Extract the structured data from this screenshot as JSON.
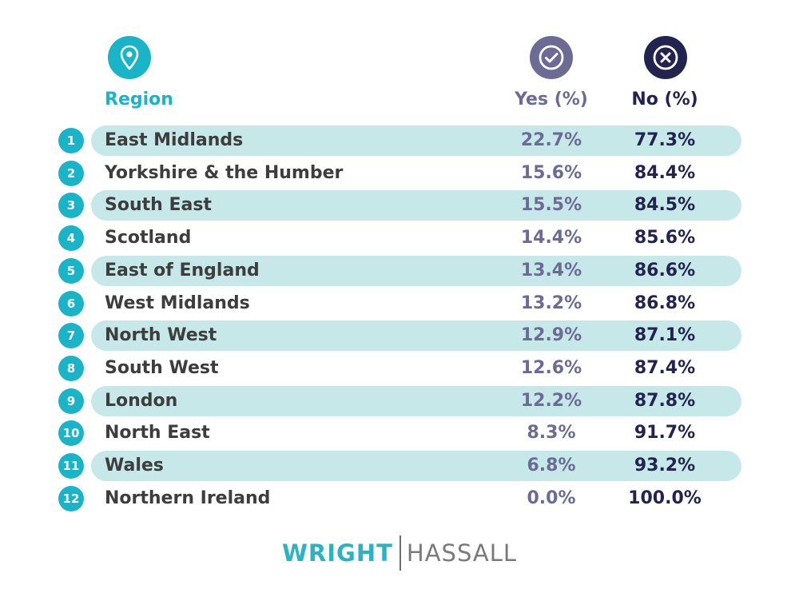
{
  "header": {
    "region_label": "Region",
    "yes_label": "Yes (%)",
    "no_label": "No (%)",
    "icons": [
      "location-pin-icon",
      "check-circle-icon",
      "cross-circle-icon"
    ]
  },
  "colors": {
    "teal": "#1ab4c8",
    "band": "#c7e8e9",
    "yes": "#6b6b96",
    "no": "#22244f",
    "region_text": "#3d3d3d"
  },
  "chart_data": {
    "type": "table",
    "columns": [
      "Region",
      "Yes (%)",
      "No (%)"
    ],
    "rows": [
      {
        "rank": "1",
        "region": "East Midlands",
        "yes": "22.7%",
        "no": "77.3%"
      },
      {
        "rank": "2",
        "region": "Yorkshire & the Humber",
        "yes": "15.6%",
        "no": "84.4%"
      },
      {
        "rank": "3",
        "region": "South East",
        "yes": "15.5%",
        "no": "84.5%"
      },
      {
        "rank": "4",
        "region": "Scotland",
        "yes": "14.4%",
        "no": "85.6%"
      },
      {
        "rank": "5",
        "region": "East of England",
        "yes": "13.4%",
        "no": "86.6%"
      },
      {
        "rank": "6",
        "region": "West Midlands",
        "yes": "13.2%",
        "no": "86.8%"
      },
      {
        "rank": "7",
        "region": "North West",
        "yes": "12.9%",
        "no": "87.1%"
      },
      {
        "rank": "8",
        "region": "South West",
        "yes": "12.6%",
        "no": "87.4%"
      },
      {
        "rank": "9",
        "region": "London",
        "yes": "12.2%",
        "no": "87.8%"
      },
      {
        "rank": "10",
        "region": "North East",
        "yes": "8.3%",
        "no": "91.7%"
      },
      {
        "rank": "11",
        "region": "Wales",
        "yes": "6.8%",
        "no": "93.2%"
      },
      {
        "rank": "12",
        "region": "Northern Ireland",
        "yes": "0.0%",
        "no": "100.0%"
      }
    ]
  },
  "logo": {
    "left_text": "WRIGHT",
    "right_text": "HASSALL"
  }
}
